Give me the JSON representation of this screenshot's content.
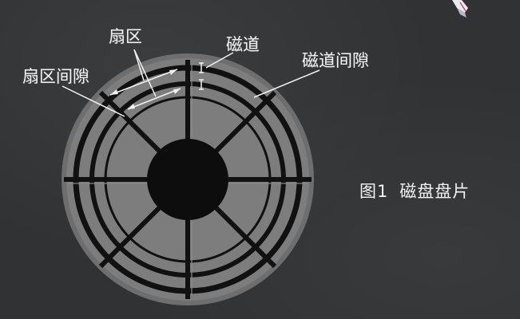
{
  "labels": {
    "sector": "扇区",
    "sector_gap": "扇区间隙",
    "track": "磁道",
    "track_gap": "磁道间隙"
  },
  "caption": {
    "figure_number": "图1",
    "title": "磁盘盘片"
  },
  "colors": {
    "background": "#303234",
    "platter": "#7d7d7d",
    "tracks": "#111111",
    "text": "#f2f2f2"
  }
}
